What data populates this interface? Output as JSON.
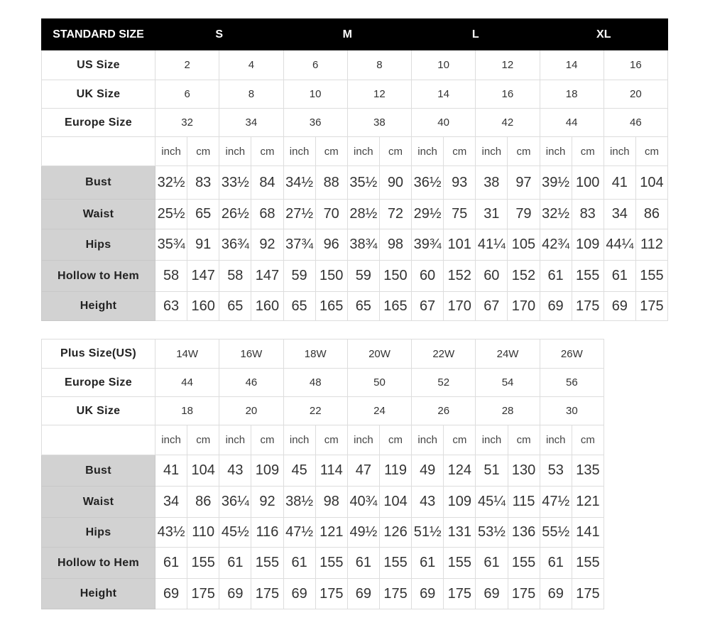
{
  "standard": {
    "header": {
      "label": "STANDARD SIZE",
      "groups": [
        "S",
        "M",
        "L",
        "XL"
      ]
    },
    "size_rows": [
      {
        "label": "US Size",
        "values": [
          "2",
          "4",
          "6",
          "8",
          "10",
          "12",
          "14",
          "16"
        ]
      },
      {
        "label": "UK Size",
        "values": [
          "6",
          "8",
          "10",
          "12",
          "14",
          "16",
          "18",
          "20"
        ]
      },
      {
        "label": "Europe Size",
        "values": [
          "32",
          "34",
          "36",
          "38",
          "40",
          "42",
          "44",
          "46"
        ]
      }
    ],
    "units": [
      "inch",
      "cm"
    ],
    "measure_rows": [
      {
        "label": "Bust",
        "values": [
          "32½",
          "83",
          "33½",
          "84",
          "34½",
          "88",
          "35½",
          "90",
          "36½",
          "93",
          "38",
          "97",
          "39½",
          "100",
          "41",
          "104"
        ]
      },
      {
        "label": "Waist",
        "values": [
          "25½",
          "65",
          "26½",
          "68",
          "27½",
          "70",
          "28½",
          "72",
          "29½",
          "75",
          "31",
          "79",
          "32½",
          "83",
          "34",
          "86"
        ]
      },
      {
        "label": "Hips",
        "values": [
          "35¾",
          "91",
          "36¾",
          "92",
          "37¾",
          "96",
          "38¾",
          "98",
          "39¾",
          "101",
          "41¼",
          "105",
          "42¾",
          "109",
          "44¼",
          "112"
        ]
      },
      {
        "label": "Hollow to Hem",
        "values": [
          "58",
          "147",
          "58",
          "147",
          "59",
          "150",
          "59",
          "150",
          "60",
          "152",
          "60",
          "152",
          "61",
          "155",
          "61",
          "155"
        ]
      },
      {
        "label": "Height",
        "values": [
          "63",
          "160",
          "65",
          "160",
          "65",
          "165",
          "65",
          "165",
          "67",
          "170",
          "67",
          "170",
          "69",
          "175",
          "69",
          "175"
        ]
      }
    ]
  },
  "plus": {
    "size_rows": [
      {
        "label": "Plus Size(US)",
        "values": [
          "14W",
          "16W",
          "18W",
          "20W",
          "22W",
          "24W",
          "26W"
        ]
      },
      {
        "label": "Europe Size",
        "values": [
          "44",
          "46",
          "48",
          "50",
          "52",
          "54",
          "56"
        ]
      },
      {
        "label": "UK Size",
        "values": [
          "18",
          "20",
          "22",
          "24",
          "26",
          "28",
          "30"
        ]
      }
    ],
    "units": [
      "inch",
      "cm"
    ],
    "measure_rows": [
      {
        "label": "Bust",
        "values": [
          "41",
          "104",
          "43",
          "109",
          "45",
          "114",
          "47",
          "119",
          "49",
          "124",
          "51",
          "130",
          "53",
          "135"
        ]
      },
      {
        "label": "Waist",
        "values": [
          "34",
          "86",
          "36¼",
          "92",
          "38½",
          "98",
          "40¾",
          "104",
          "43",
          "109",
          "45¼",
          "115",
          "47½",
          "121"
        ]
      },
      {
        "label": "Hips",
        "values": [
          "43½",
          "110",
          "45½",
          "116",
          "47½",
          "121",
          "49½",
          "126",
          "51½",
          "131",
          "53½",
          "136",
          "55½",
          "141"
        ]
      },
      {
        "label": "Hollow to Hem",
        "values": [
          "61",
          "155",
          "61",
          "155",
          "61",
          "155",
          "61",
          "155",
          "61",
          "155",
          "61",
          "155",
          "61",
          "155"
        ]
      },
      {
        "label": "Height",
        "values": [
          "69",
          "175",
          "69",
          "175",
          "69",
          "175",
          "69",
          "175",
          "69",
          "175",
          "69",
          "175",
          "69",
          "175"
        ]
      }
    ]
  },
  "colors": {
    "header_bg": "#000000",
    "label_gray": "#d2d2d2",
    "grid": "#dddddd"
  }
}
